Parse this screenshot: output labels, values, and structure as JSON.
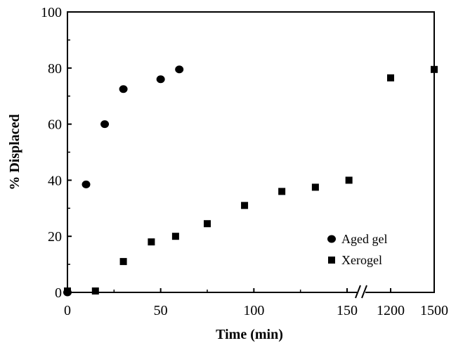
{
  "chart_data": {
    "type": "scatter",
    "xlabel": "Time (min)",
    "ylabel": "% Displaced",
    "ylim": [
      0,
      100
    ],
    "yticks": [
      "0",
      "20",
      "40",
      "60",
      "80",
      "100"
    ],
    "x_axis": {
      "broken": true,
      "linear_segment": {
        "range": [
          0,
          150
        ],
        "ticks": [
          "0",
          "50",
          "100",
          "150"
        ]
      },
      "after_break_ticks": [
        "1200",
        "1500"
      ]
    },
    "series": [
      {
        "name": "Aged gel",
        "marker": "circle",
        "points": [
          {
            "x": 0,
            "y": 0
          },
          {
            "x": 10,
            "y": 38.5
          },
          {
            "x": 20,
            "y": 60
          },
          {
            "x": 30,
            "y": 72.5
          },
          {
            "x": 50,
            "y": 76
          },
          {
            "x": 60,
            "y": 79.5
          }
        ]
      },
      {
        "name": "Xerogel",
        "marker": "square",
        "points": [
          {
            "x": 0,
            "y": 0.5
          },
          {
            "x": 15,
            "y": 0.5
          },
          {
            "x": 30,
            "y": 11
          },
          {
            "x": 45,
            "y": 18
          },
          {
            "x": 58,
            "y": 20
          },
          {
            "x": 75,
            "y": 24.5
          },
          {
            "x": 95,
            "y": 31
          },
          {
            "x": 115,
            "y": 36
          },
          {
            "x": 133,
            "y": 37.5
          },
          {
            "x": 151,
            "y": 40
          },
          {
            "x": 1200,
            "y": 76.5
          },
          {
            "x": 1500,
            "y": 79.5
          }
        ]
      }
    ],
    "legend": {
      "placement": "bottom-right",
      "items": [
        "Aged gel",
        "Xerogel"
      ]
    },
    "grid": false
  }
}
